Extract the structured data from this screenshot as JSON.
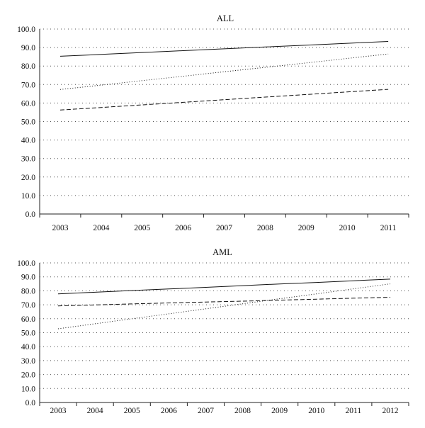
{
  "chart_data": [
    {
      "type": "line",
      "title": "ALL",
      "xlabel": "",
      "ylabel": "",
      "categories": [
        "2003",
        "2004",
        "2005",
        "2006",
        "2007",
        "2008",
        "2009",
        "2010",
        "2011"
      ],
      "ylim": [
        0,
        100
      ],
      "yticks": [
        "0.0",
        "10.0",
        "20.0",
        "30.0",
        "40.0",
        "50.0",
        "60.0",
        "70.0",
        "80.0",
        "90.0",
        "100.0"
      ],
      "grid": true,
      "legend": "none",
      "series": [
        {
          "style": "solid",
          "values": [
            85.3,
            86.3,
            87.3,
            88.3,
            89.3,
            90.3,
            91.3,
            92.3,
            93.3
          ]
        },
        {
          "style": "dotted",
          "values": [
            67.3,
            69.7,
            72.1,
            74.5,
            76.9,
            79.3,
            81.7,
            84.1,
            86.5
          ]
        },
        {
          "style": "dashed",
          "values": [
            56.2,
            57.6,
            59.0,
            60.4,
            61.8,
            63.2,
            64.6,
            66.0,
            67.4
          ]
        }
      ]
    },
    {
      "type": "line",
      "title": "AML",
      "xlabel": "",
      "ylabel": "",
      "categories": [
        "2003",
        "2004",
        "2005",
        "2006",
        "2007",
        "2008",
        "2009",
        "2010",
        "2011",
        "2012"
      ],
      "ylim": [
        0,
        100
      ],
      "yticks": [
        "0.0",
        "10.0",
        "20.0",
        "30.0",
        "40.0",
        "50.0",
        "60.0",
        "70.0",
        "80.0",
        "90.0",
        "100.0"
      ],
      "grid": true,
      "legend": "none",
      "series": [
        {
          "style": "solid",
          "values": [
            77.8,
            79.0,
            80.2,
            81.3,
            82.5,
            83.7,
            84.9,
            86.0,
            87.2,
            88.4
          ]
        },
        {
          "style": "dotted",
          "values": [
            52.8,
            56.4,
            60.0,
            63.5,
            67.1,
            70.7,
            74.3,
            77.8,
            81.4,
            85.0
          ]
        },
        {
          "style": "dashed",
          "values": [
            69.2,
            69.9,
            70.6,
            71.3,
            72.0,
            72.6,
            73.3,
            74.0,
            74.7,
            75.4
          ]
        }
      ]
    }
  ]
}
